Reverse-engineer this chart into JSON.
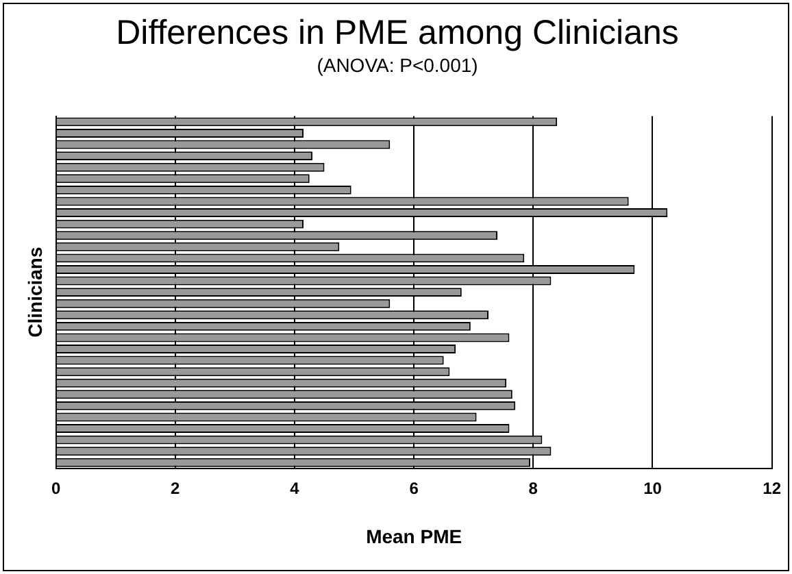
{
  "chart_data": {
    "type": "bar",
    "orientation": "horizontal",
    "title": "Differences in PME among Clinicians",
    "subtitle": "(ANOVA: P<0.001)",
    "xlabel": "Mean PME",
    "ylabel": "Clinicians",
    "categories": [
      null,
      null,
      null,
      null,
      null,
      null,
      null,
      null,
      null,
      null,
      null,
      null,
      null,
      null,
      null,
      null,
      null,
      null,
      null,
      null,
      null,
      null,
      null,
      null,
      null,
      null,
      null,
      null,
      null,
      null,
      null
    ],
    "values": [
      8.4,
      4.15,
      5.6,
      4.3,
      4.5,
      4.25,
      4.95,
      9.6,
      10.25,
      4.15,
      7.4,
      4.75,
      7.85,
      9.7,
      8.3,
      6.8,
      5.6,
      7.25,
      6.95,
      7.6,
      6.7,
      6.5,
      6.6,
      7.55,
      7.65,
      7.7,
      7.05,
      7.6,
      8.15,
      8.3,
      7.95
    ],
    "color": "#999999",
    "xlim": [
      0,
      12
    ],
    "xticks": [
      0,
      2,
      4,
      6,
      8,
      10,
      12
    ],
    "grid": "x",
    "legend": false
  }
}
